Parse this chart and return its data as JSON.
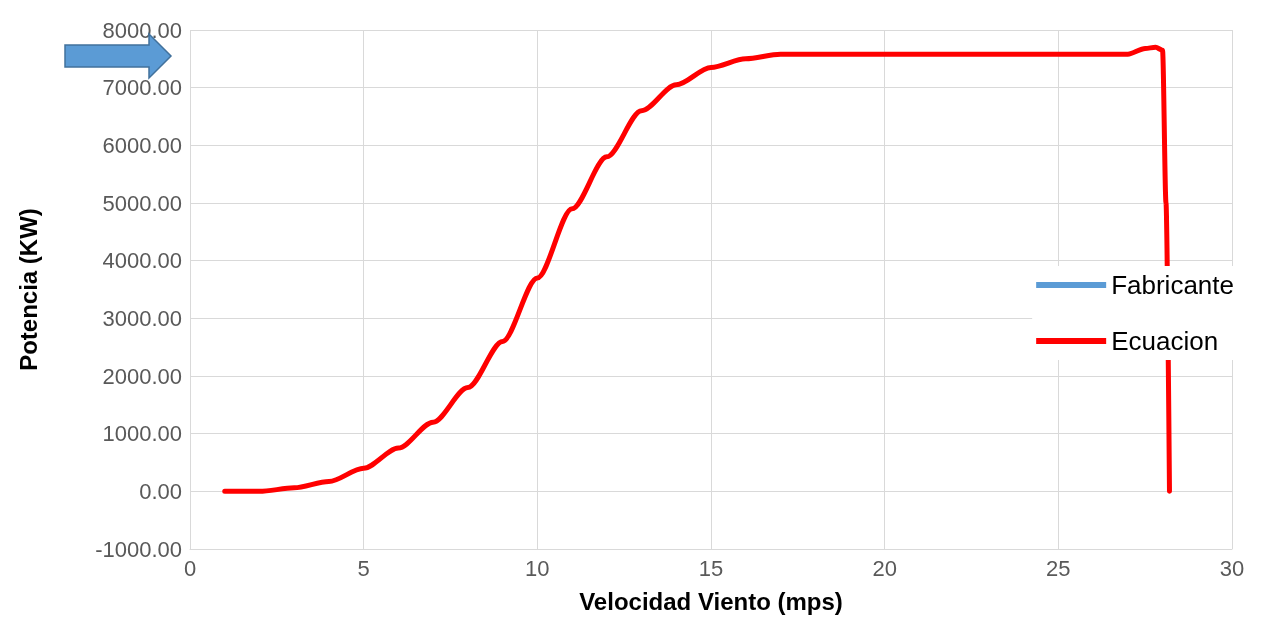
{
  "chart_data": {
    "type": "line",
    "xlabel": "Velocidad Viento (mps)",
    "ylabel": "Potencia (KW)",
    "x": [
      1,
      2,
      3,
      4,
      5,
      6,
      7,
      8,
      9,
      10,
      11,
      12,
      13,
      14,
      15,
      16,
      17,
      18,
      20,
      22,
      24,
      26,
      27,
      27.5,
      27.8,
      28,
      28.1,
      28.2
    ],
    "series": [
      {
        "name": "Fabricante",
        "color": "#5b9bd5",
        "values": [
          null,
          null,
          null,
          null,
          null,
          null,
          null,
          null,
          null,
          null,
          null,
          null,
          null,
          null,
          null,
          null,
          null,
          null,
          null,
          null,
          null,
          null,
          null,
          null,
          null,
          null,
          null,
          null
        ]
      },
      {
        "name": "Ecuacion",
        "color": "#ff0000",
        "values": [
          0,
          0,
          60,
          170,
          400,
          750,
          1200,
          1800,
          2600,
          3700,
          4900,
          5800,
          6600,
          7050,
          7350,
          7500,
          7580,
          7580,
          7580,
          7580,
          7580,
          7580,
          7580,
          7680,
          7700,
          7650,
          5000,
          0
        ]
      }
    ],
    "xlim": [
      0,
      30
    ],
    "xticks": [
      0,
      5,
      10,
      15,
      20,
      25,
      30
    ],
    "ylim": [
      -1000,
      8000
    ],
    "yticks": [
      {
        "value": -1000,
        "label": "-1000.00"
      },
      {
        "value": 0,
        "label": "0.00"
      },
      {
        "value": 1000,
        "label": "1000.00"
      },
      {
        "value": 2000,
        "label": "2000.00"
      },
      {
        "value": 3000,
        "label": "3000.00"
      },
      {
        "value": 4000,
        "label": "4000.00"
      },
      {
        "value": 5000,
        "label": "5000.00"
      },
      {
        "value": 6000,
        "label": "6000.00"
      },
      {
        "value": 7000,
        "label": "7000.00"
      },
      {
        "value": 8000,
        "label": "8000.00"
      }
    ],
    "grid": true,
    "legend": "right",
    "marker": "none",
    "line_style": "solid"
  }
}
